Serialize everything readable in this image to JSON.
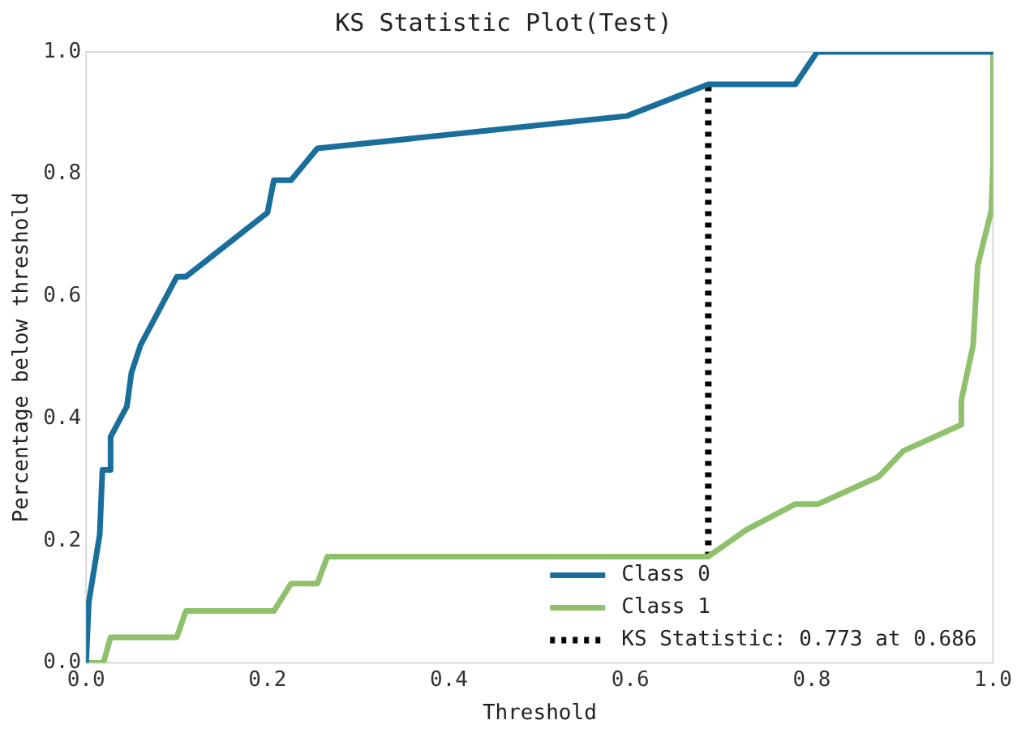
{
  "chart_data": {
    "type": "line",
    "title": "KS Statistic Plot(Test)",
    "xlabel": "Threshold",
    "ylabel": "Percentage below threshold",
    "series": [
      {
        "name": "Class 0",
        "color": "#1a6e9c",
        "x": [
          0,
          0.003,
          0.015,
          0.018,
          0.027,
          0.027,
          0.045,
          0.05,
          0.06,
          0.1,
          0.11,
          0.2,
          0.207,
          0.226,
          0.255,
          0.596,
          0.686,
          0.782,
          0.806,
          1.0
        ],
        "values": [
          0,
          0.1,
          0.21,
          0.316,
          0.316,
          0.37,
          0.42,
          0.475,
          0.52,
          0.632,
          0.632,
          0.737,
          0.79,
          0.79,
          0.842,
          0.895,
          0.947,
          0.947,
          1.0,
          1.0
        ]
      },
      {
        "name": "Class 1",
        "color": "#8fc06b",
        "x": [
          0,
          0.019,
          0.027,
          0.1,
          0.11,
          0.207,
          0.226,
          0.255,
          0.266,
          0.686,
          0.728,
          0.782,
          0.807,
          0.874,
          0.901,
          0.965,
          0.965,
          0.978,
          0.983,
          0.998,
          1.0,
          1.0
        ],
        "values": [
          0,
          0,
          0.042,
          0.042,
          0.085,
          0.085,
          0.13,
          0.13,
          0.174,
          0.174,
          0.218,
          0.26,
          0.26,
          0.305,
          0.347,
          0.39,
          0.43,
          0.52,
          0.65,
          0.74,
          0.82,
          1.0
        ]
      },
      {
        "name": "KS Statistic: 0.773 at 0.686",
        "color": "#000000",
        "line_style": "dotted",
        "x": [
          0.686,
          0.686
        ],
        "values": [
          0.174,
          0.947
        ]
      }
    ],
    "xlim": [
      0,
      1
    ],
    "ylim": [
      0,
      1
    ],
    "xticks": [
      {
        "value": 0,
        "label": "0.0"
      },
      0.2,
      0.4,
      0.6,
      0.8,
      {
        "value": 1,
        "label": "1.0"
      }
    ],
    "yticks": [
      {
        "value": 0,
        "label": "0.0"
      },
      0.2,
      0.4,
      0.6,
      0.8,
      {
        "value": 1,
        "label": "1.0"
      }
    ],
    "grid": false,
    "legend": "bottom right",
    "line_style": "solid",
    "marker": "none"
  }
}
